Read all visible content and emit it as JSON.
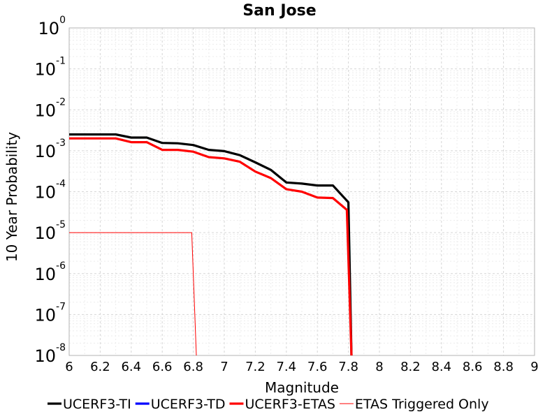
{
  "chart_data": {
    "type": "line",
    "title": "San Jose",
    "xlabel": "Magnitude",
    "ylabel": "10 Year Probability",
    "xlim": [
      6,
      9
    ],
    "ylim": [
      1e-08,
      1
    ],
    "yscale": "log",
    "grid": true,
    "legend_position": "bottom",
    "x_ticks": [
      "6",
      "6.2",
      "6.4",
      "6.6",
      "6.8",
      "7",
      "7.2",
      "7.4",
      "7.6",
      "7.8",
      "8",
      "8.2",
      "8.4",
      "8.6",
      "8.8",
      "9"
    ],
    "y_ticks": [
      {
        "base": "10",
        "exp": "0"
      },
      {
        "base": "10",
        "exp": "-1"
      },
      {
        "base": "10",
        "exp": "-2"
      },
      {
        "base": "10",
        "exp": "-3"
      },
      {
        "base": "10",
        "exp": "-4"
      },
      {
        "base": "10",
        "exp": "-5"
      },
      {
        "base": "10",
        "exp": "-6"
      },
      {
        "base": "10",
        "exp": "-7"
      },
      {
        "base": "10",
        "exp": "-8"
      }
    ],
    "series": [
      {
        "name": "UCERF3-TI",
        "color": "#000000",
        "style": "thick",
        "points": [
          [
            6.0,
            0.0025
          ],
          [
            6.3,
            0.0025
          ],
          [
            6.4,
            0.0021
          ],
          [
            6.5,
            0.0021
          ],
          [
            6.6,
            0.00155
          ],
          [
            6.7,
            0.00152
          ],
          [
            6.8,
            0.00138
          ],
          [
            6.9,
            0.00105
          ],
          [
            7.0,
            0.00098
          ],
          [
            7.1,
            0.00078
          ],
          [
            7.2,
            0.00052
          ],
          [
            7.3,
            0.00034
          ],
          [
            7.4,
            0.000168
          ],
          [
            7.5,
            0.000158
          ],
          [
            7.6,
            0.000142
          ],
          [
            7.7,
            0.000142
          ],
          [
            7.8,
            5.5e-05
          ],
          [
            7.82,
            1e-08
          ]
        ]
      },
      {
        "name": "UCERF3-TD",
        "color": "#0000ff",
        "style": "thick",
        "points": []
      },
      {
        "name": "UCERF3-ETAS",
        "color": "#ff0000",
        "style": "thick",
        "points": [
          [
            6.0,
            0.002
          ],
          [
            6.3,
            0.002
          ],
          [
            6.4,
            0.00162
          ],
          [
            6.5,
            0.00162
          ],
          [
            6.6,
            0.00105
          ],
          [
            6.7,
            0.00105
          ],
          [
            6.8,
            0.00095
          ],
          [
            6.9,
            0.0007
          ],
          [
            7.0,
            0.00065
          ],
          [
            7.1,
            0.00054
          ],
          [
            7.2,
            0.00031
          ],
          [
            7.3,
            0.000215
          ],
          [
            7.4,
            0.000115
          ],
          [
            7.5,
            0.0001
          ],
          [
            7.6,
            7.2e-05
          ],
          [
            7.7,
            7e-05
          ],
          [
            7.79,
            3.6e-05
          ],
          [
            7.82,
            1e-08
          ]
        ]
      },
      {
        "name": "ETAS Triggered Only",
        "color": "#ff0000",
        "style": "thin",
        "points": [
          [
            6.0,
            1e-05
          ],
          [
            6.79,
            1e-05
          ],
          [
            6.82,
            1e-08
          ]
        ]
      }
    ]
  }
}
